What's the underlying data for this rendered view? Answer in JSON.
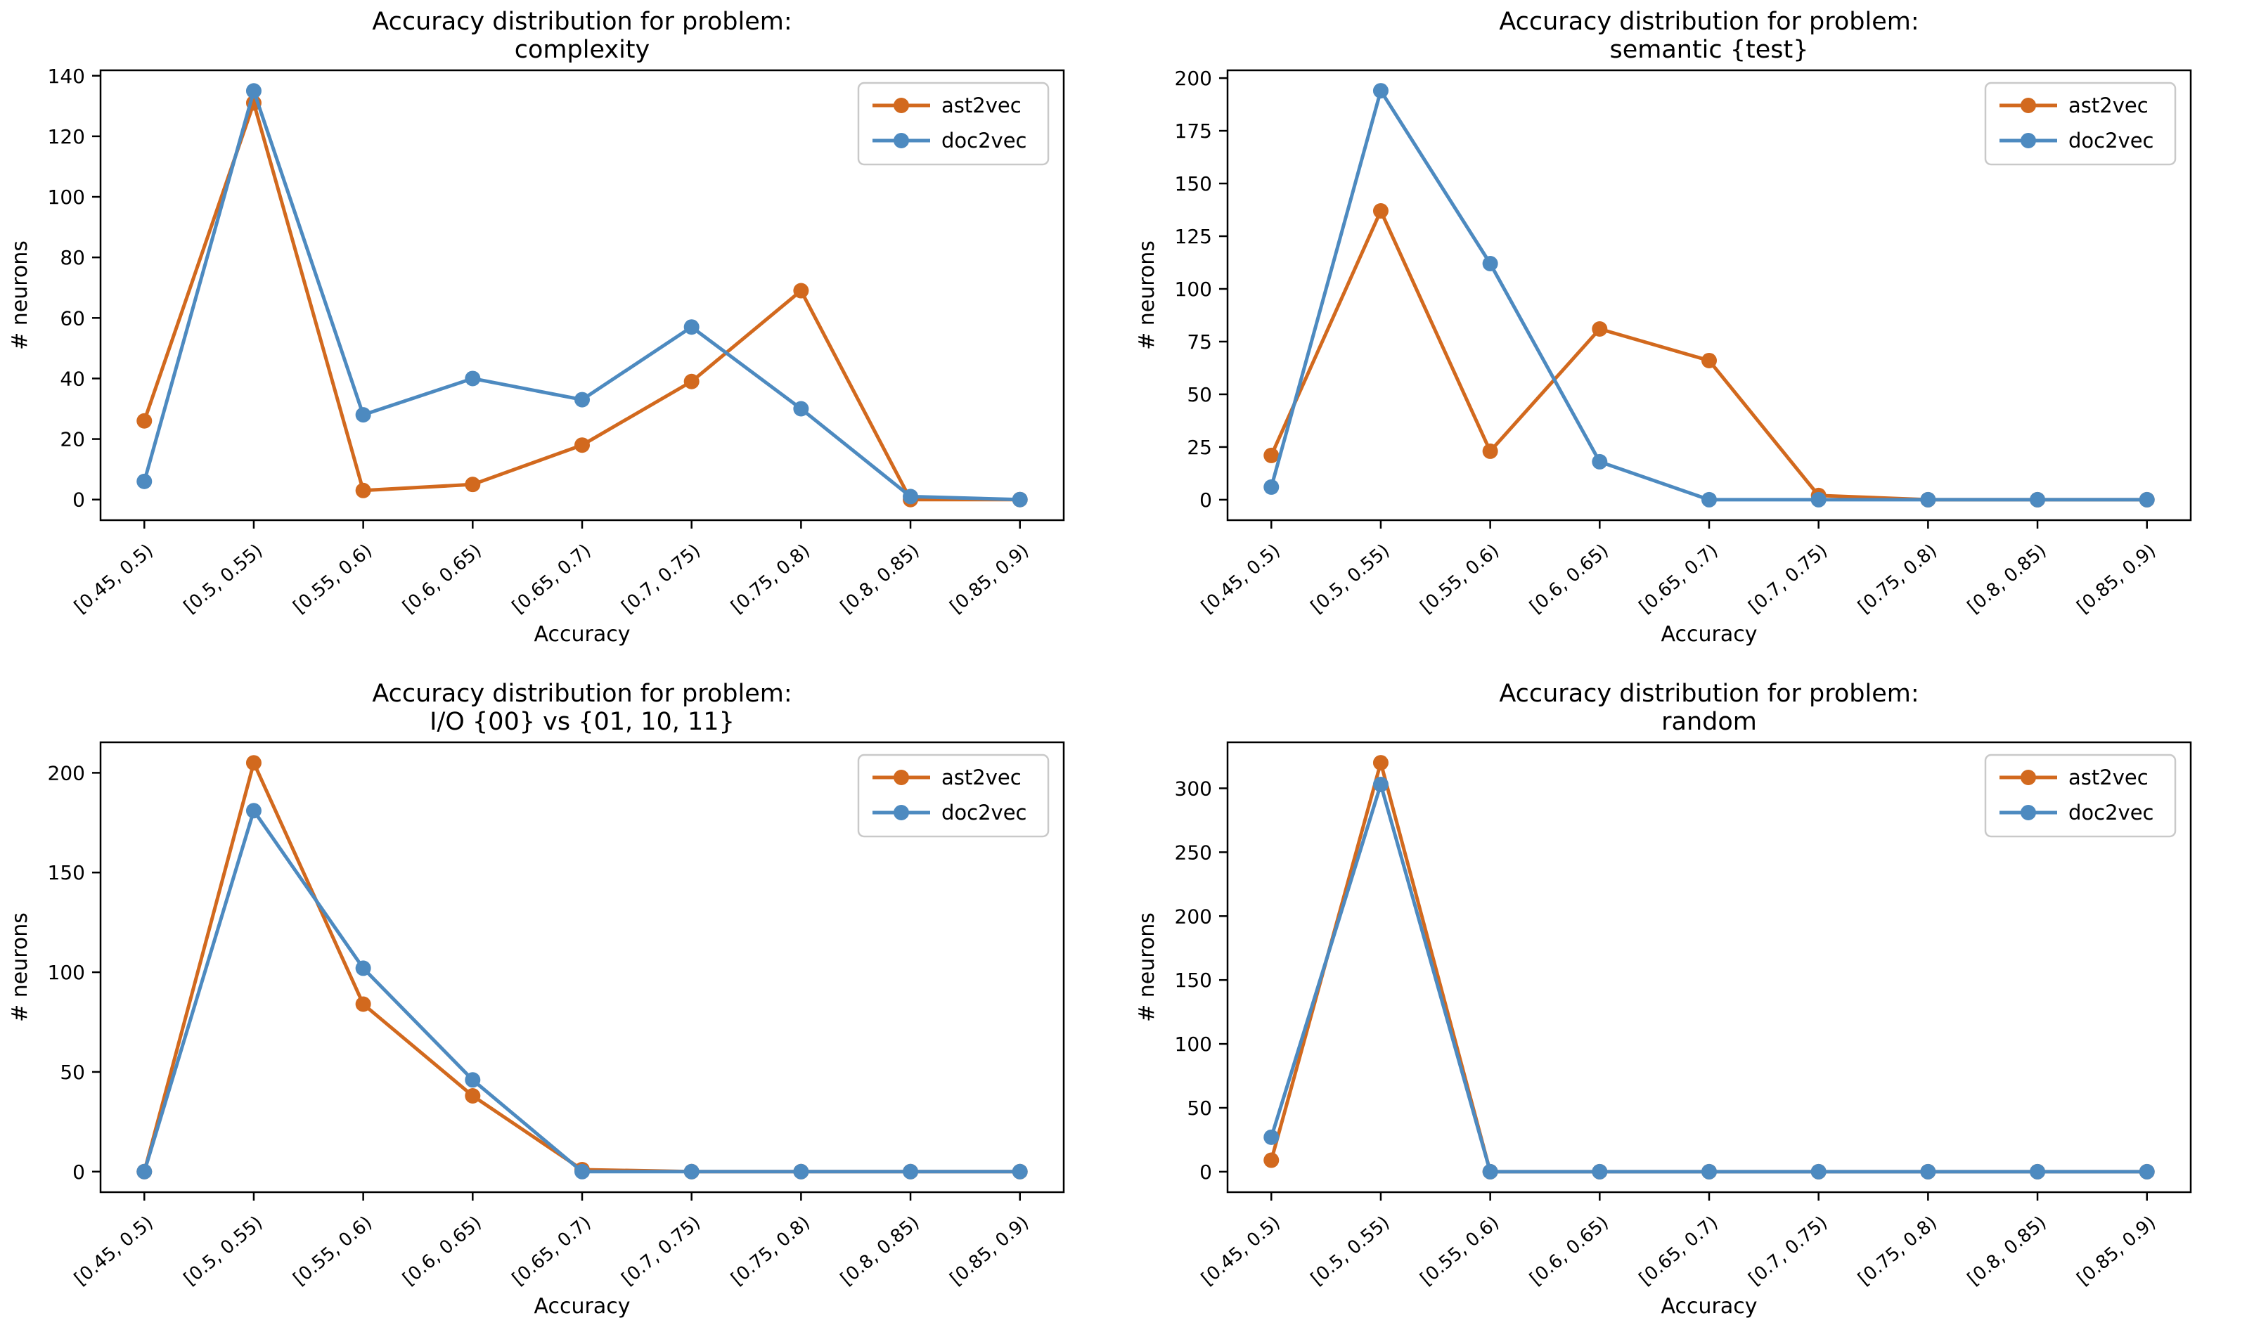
{
  "figure": {
    "background": "#ffffff",
    "title_prefix": "Accuracy distribution for problem:"
  },
  "legend": {
    "entries": [
      "ast2vec",
      "doc2vec"
    ],
    "position": "top-right",
    "border_color": "#c9c9c9",
    "fill_color": "#ffffff"
  },
  "colors": {
    "ast2vec": "#d2691e",
    "doc2vec": "#4d8ac0",
    "spine": "#000000",
    "text": "#000000"
  },
  "chart_data": [
    {
      "type": "line",
      "title": "Accuracy distribution for problem:",
      "subtitle": "complexity",
      "xlabel": "Accuracy",
      "ylabel": "# neurons",
      "categories": [
        "[0.45, 0.5)",
        "[0.5, 0.55)",
        "[0.55, 0.6)",
        "[0.6, 0.65)",
        "[0.65, 0.7)",
        "[0.7, 0.75)",
        "[0.75, 0.8)",
        "[0.8, 0.85)",
        "[0.85, 0.9)"
      ],
      "series": [
        {
          "name": "ast2vec",
          "color": "#d2691e",
          "values": [
            26,
            131,
            3,
            5,
            18,
            39,
            69,
            0,
            0
          ]
        },
        {
          "name": "doc2vec",
          "color": "#4d8ac0",
          "values": [
            6,
            135,
            28,
            40,
            33,
            57,
            30,
            1,
            0
          ]
        }
      ],
      "yticks": [
        0,
        20,
        40,
        60,
        80,
        100,
        120,
        140
      ],
      "ylim": [
        -6.8,
        141.8
      ],
      "grid": false,
      "legend_position": "top-right"
    },
    {
      "type": "line",
      "title": "Accuracy distribution for problem:",
      "subtitle": "semantic {test}",
      "xlabel": "Accuracy",
      "ylabel": "# neurons",
      "categories": [
        "[0.45, 0.5)",
        "[0.5, 0.55)",
        "[0.55, 0.6)",
        "[0.6, 0.65)",
        "[0.65, 0.7)",
        "[0.7, 0.75)",
        "[0.75, 0.8)",
        "[0.8, 0.85)",
        "[0.85, 0.9)"
      ],
      "series": [
        {
          "name": "ast2vec",
          "color": "#d2691e",
          "values": [
            21,
            137,
            23,
            81,
            66,
            2,
            0,
            0,
            0
          ]
        },
        {
          "name": "doc2vec",
          "color": "#4d8ac0",
          "values": [
            6,
            194,
            112,
            18,
            0,
            0,
            0,
            0,
            0
          ]
        }
      ],
      "yticks": [
        0,
        25,
        50,
        75,
        100,
        125,
        150,
        175,
        200
      ],
      "ylim": [
        -9.7,
        203.7
      ],
      "grid": false,
      "legend_position": "top-right"
    },
    {
      "type": "line",
      "title": "Accuracy distribution for problem:",
      "subtitle": "I/O {00} vs {01, 10, 11}",
      "xlabel": "Accuracy",
      "ylabel": "# neurons",
      "categories": [
        "[0.45, 0.5)",
        "[0.5, 0.55)",
        "[0.55, 0.6)",
        "[0.6, 0.65)",
        "[0.65, 0.7)",
        "[0.7, 0.75)",
        "[0.75, 0.8)",
        "[0.8, 0.85)",
        "[0.85, 0.9)"
      ],
      "series": [
        {
          "name": "ast2vec",
          "color": "#d2691e",
          "values": [
            0,
            205,
            84,
            38,
            1,
            0,
            0,
            0,
            0
          ]
        },
        {
          "name": "doc2vec",
          "color": "#4d8ac0",
          "values": [
            0,
            181,
            102,
            46,
            0,
            0,
            0,
            0,
            0
          ]
        }
      ],
      "yticks": [
        0,
        50,
        100,
        150,
        200
      ],
      "ylim": [
        -10.3,
        215.3
      ],
      "grid": false,
      "legend_position": "top-right"
    },
    {
      "type": "line",
      "title": "Accuracy distribution for problem:",
      "subtitle": "random",
      "xlabel": "Accuracy",
      "ylabel": "# neurons",
      "categories": [
        "[0.45, 0.5)",
        "[0.5, 0.55)",
        "[0.55, 0.6)",
        "[0.6, 0.65)",
        "[0.65, 0.7)",
        "[0.7, 0.75)",
        "[0.75, 0.8)",
        "[0.8, 0.85)",
        "[0.85, 0.9)"
      ],
      "series": [
        {
          "name": "ast2vec",
          "color": "#d2691e",
          "values": [
            9,
            320,
            0,
            0,
            0,
            0,
            0,
            0,
            0
          ]
        },
        {
          "name": "doc2vec",
          "color": "#4d8ac0",
          "values": [
            27,
            303,
            0,
            0,
            0,
            0,
            0,
            0,
            0
          ]
        }
      ],
      "yticks": [
        0,
        50,
        100,
        150,
        200,
        250,
        300
      ],
      "ylim": [
        -16,
        336
      ],
      "grid": false,
      "legend_position": "top-right"
    }
  ]
}
